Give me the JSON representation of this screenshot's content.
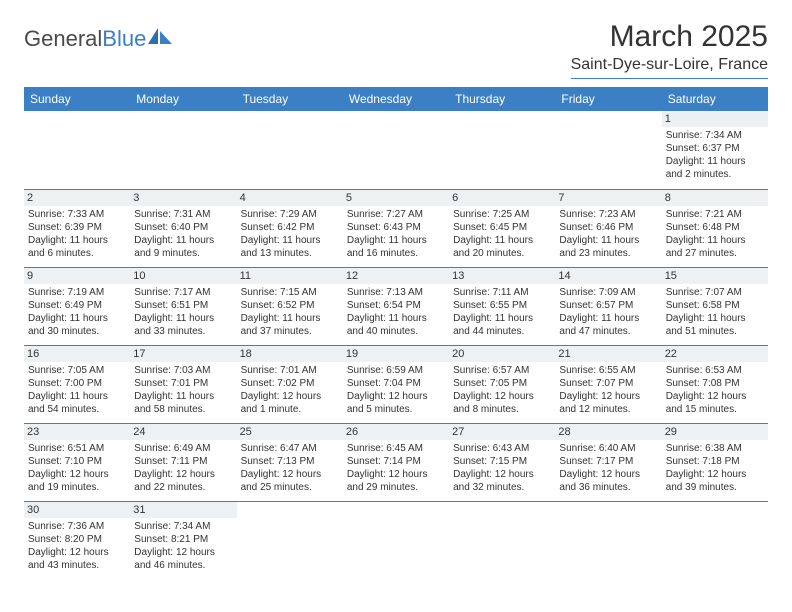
{
  "logo": {
    "general": "General",
    "blue": "Blue"
  },
  "title": "March 2025",
  "location": "Saint-Dye-sur-Loire, France",
  "colors": {
    "header_bg": "#3b7fc4",
    "header_text": "#ffffff",
    "daynum_bg": "#eef1f4",
    "border": "#3b7fc4",
    "text": "#333333"
  },
  "weekdays": [
    "Sunday",
    "Monday",
    "Tuesday",
    "Wednesday",
    "Thursday",
    "Friday",
    "Saturday"
  ],
  "weeks": [
    [
      null,
      null,
      null,
      null,
      null,
      null,
      {
        "n": "1",
        "sr": "Sunrise: 7:34 AM",
        "ss": "Sunset: 6:37 PM",
        "d1": "Daylight: 11 hours",
        "d2": "and 2 minutes."
      }
    ],
    [
      {
        "n": "2",
        "sr": "Sunrise: 7:33 AM",
        "ss": "Sunset: 6:39 PM",
        "d1": "Daylight: 11 hours",
        "d2": "and 6 minutes."
      },
      {
        "n": "3",
        "sr": "Sunrise: 7:31 AM",
        "ss": "Sunset: 6:40 PM",
        "d1": "Daylight: 11 hours",
        "d2": "and 9 minutes."
      },
      {
        "n": "4",
        "sr": "Sunrise: 7:29 AM",
        "ss": "Sunset: 6:42 PM",
        "d1": "Daylight: 11 hours",
        "d2": "and 13 minutes."
      },
      {
        "n": "5",
        "sr": "Sunrise: 7:27 AM",
        "ss": "Sunset: 6:43 PM",
        "d1": "Daylight: 11 hours",
        "d2": "and 16 minutes."
      },
      {
        "n": "6",
        "sr": "Sunrise: 7:25 AM",
        "ss": "Sunset: 6:45 PM",
        "d1": "Daylight: 11 hours",
        "d2": "and 20 minutes."
      },
      {
        "n": "7",
        "sr": "Sunrise: 7:23 AM",
        "ss": "Sunset: 6:46 PM",
        "d1": "Daylight: 11 hours",
        "d2": "and 23 minutes."
      },
      {
        "n": "8",
        "sr": "Sunrise: 7:21 AM",
        "ss": "Sunset: 6:48 PM",
        "d1": "Daylight: 11 hours",
        "d2": "and 27 minutes."
      }
    ],
    [
      {
        "n": "9",
        "sr": "Sunrise: 7:19 AM",
        "ss": "Sunset: 6:49 PM",
        "d1": "Daylight: 11 hours",
        "d2": "and 30 minutes."
      },
      {
        "n": "10",
        "sr": "Sunrise: 7:17 AM",
        "ss": "Sunset: 6:51 PM",
        "d1": "Daylight: 11 hours",
        "d2": "and 33 minutes."
      },
      {
        "n": "11",
        "sr": "Sunrise: 7:15 AM",
        "ss": "Sunset: 6:52 PM",
        "d1": "Daylight: 11 hours",
        "d2": "and 37 minutes."
      },
      {
        "n": "12",
        "sr": "Sunrise: 7:13 AM",
        "ss": "Sunset: 6:54 PM",
        "d1": "Daylight: 11 hours",
        "d2": "and 40 minutes."
      },
      {
        "n": "13",
        "sr": "Sunrise: 7:11 AM",
        "ss": "Sunset: 6:55 PM",
        "d1": "Daylight: 11 hours",
        "d2": "and 44 minutes."
      },
      {
        "n": "14",
        "sr": "Sunrise: 7:09 AM",
        "ss": "Sunset: 6:57 PM",
        "d1": "Daylight: 11 hours",
        "d2": "and 47 minutes."
      },
      {
        "n": "15",
        "sr": "Sunrise: 7:07 AM",
        "ss": "Sunset: 6:58 PM",
        "d1": "Daylight: 11 hours",
        "d2": "and 51 minutes."
      }
    ],
    [
      {
        "n": "16",
        "sr": "Sunrise: 7:05 AM",
        "ss": "Sunset: 7:00 PM",
        "d1": "Daylight: 11 hours",
        "d2": "and 54 minutes."
      },
      {
        "n": "17",
        "sr": "Sunrise: 7:03 AM",
        "ss": "Sunset: 7:01 PM",
        "d1": "Daylight: 11 hours",
        "d2": "and 58 minutes."
      },
      {
        "n": "18",
        "sr": "Sunrise: 7:01 AM",
        "ss": "Sunset: 7:02 PM",
        "d1": "Daylight: 12 hours",
        "d2": "and 1 minute."
      },
      {
        "n": "19",
        "sr": "Sunrise: 6:59 AM",
        "ss": "Sunset: 7:04 PM",
        "d1": "Daylight: 12 hours",
        "d2": "and 5 minutes."
      },
      {
        "n": "20",
        "sr": "Sunrise: 6:57 AM",
        "ss": "Sunset: 7:05 PM",
        "d1": "Daylight: 12 hours",
        "d2": "and 8 minutes."
      },
      {
        "n": "21",
        "sr": "Sunrise: 6:55 AM",
        "ss": "Sunset: 7:07 PM",
        "d1": "Daylight: 12 hours",
        "d2": "and 12 minutes."
      },
      {
        "n": "22",
        "sr": "Sunrise: 6:53 AM",
        "ss": "Sunset: 7:08 PM",
        "d1": "Daylight: 12 hours",
        "d2": "and 15 minutes."
      }
    ],
    [
      {
        "n": "23",
        "sr": "Sunrise: 6:51 AM",
        "ss": "Sunset: 7:10 PM",
        "d1": "Daylight: 12 hours",
        "d2": "and 19 minutes."
      },
      {
        "n": "24",
        "sr": "Sunrise: 6:49 AM",
        "ss": "Sunset: 7:11 PM",
        "d1": "Daylight: 12 hours",
        "d2": "and 22 minutes."
      },
      {
        "n": "25",
        "sr": "Sunrise: 6:47 AM",
        "ss": "Sunset: 7:13 PM",
        "d1": "Daylight: 12 hours",
        "d2": "and 25 minutes."
      },
      {
        "n": "26",
        "sr": "Sunrise: 6:45 AM",
        "ss": "Sunset: 7:14 PM",
        "d1": "Daylight: 12 hours",
        "d2": "and 29 minutes."
      },
      {
        "n": "27",
        "sr": "Sunrise: 6:43 AM",
        "ss": "Sunset: 7:15 PM",
        "d1": "Daylight: 12 hours",
        "d2": "and 32 minutes."
      },
      {
        "n": "28",
        "sr": "Sunrise: 6:40 AM",
        "ss": "Sunset: 7:17 PM",
        "d1": "Daylight: 12 hours",
        "d2": "and 36 minutes."
      },
      {
        "n": "29",
        "sr": "Sunrise: 6:38 AM",
        "ss": "Sunset: 7:18 PM",
        "d1": "Daylight: 12 hours",
        "d2": "and 39 minutes."
      }
    ],
    [
      {
        "n": "30",
        "sr": "Sunrise: 7:36 AM",
        "ss": "Sunset: 8:20 PM",
        "d1": "Daylight: 12 hours",
        "d2": "and 43 minutes."
      },
      {
        "n": "31",
        "sr": "Sunrise: 7:34 AM",
        "ss": "Sunset: 8:21 PM",
        "d1": "Daylight: 12 hours",
        "d2": "and 46 minutes."
      },
      null,
      null,
      null,
      null,
      null
    ]
  ]
}
